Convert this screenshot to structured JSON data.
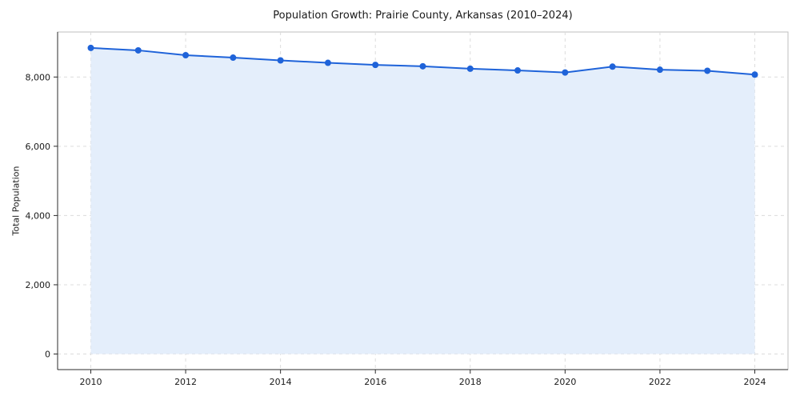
{
  "figure": {
    "title": "Population Growth: Prairie County, Arkansas (2010–2024)",
    "ylabel": "Total Population"
  },
  "chart_data": {
    "type": "line",
    "title": "Population Growth: Prairie County, Arkansas (2010–2024)",
    "xlabel": "",
    "ylabel": "Total Population",
    "x": [
      2010,
      2011,
      2012,
      2013,
      2014,
      2015,
      2016,
      2017,
      2018,
      2019,
      2020,
      2021,
      2022,
      2023,
      2024
    ],
    "y": [
      8840,
      8770,
      8630,
      8560,
      8480,
      8410,
      8350,
      8310,
      8240,
      8190,
      8130,
      8300,
      8210,
      8180,
      8070
    ],
    "xlim": [
      2009.3,
      2024.7
    ],
    "ylim": [
      -450,
      9300
    ],
    "xticks": [
      2010,
      2012,
      2014,
      2016,
      2018,
      2020,
      2022,
      2024
    ],
    "yticks": [
      0,
      2000,
      4000,
      6000,
      8000
    ],
    "grid": true,
    "legend": false,
    "marker": "circle",
    "marker_radius": 4,
    "line_color": "#1f63d9",
    "fill_color": "#e4eefb",
    "grid_color": "#dcdcdc",
    "spine_color": "#2b2b2b",
    "box_color": "#bfbfbf",
    "fill_baseline": 0
  }
}
